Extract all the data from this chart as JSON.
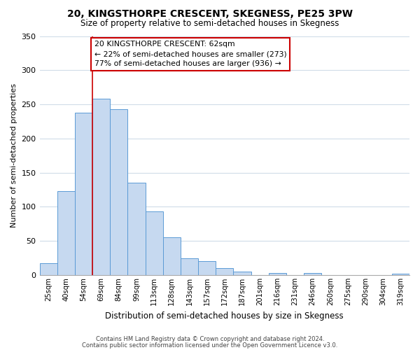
{
  "title": "20, KINGSTHORPE CRESCENT, SKEGNESS, PE25 3PW",
  "subtitle": "Size of property relative to semi-detached houses in Skegness",
  "xlabel": "Distribution of semi-detached houses by size in Skegness",
  "ylabel": "Number of semi-detached properties",
  "bin_labels": [
    "25sqm",
    "40sqm",
    "54sqm",
    "69sqm",
    "84sqm",
    "99sqm",
    "113sqm",
    "128sqm",
    "143sqm",
    "157sqm",
    "172sqm",
    "187sqm",
    "201sqm",
    "216sqm",
    "231sqm",
    "246sqm",
    "260sqm",
    "275sqm",
    "290sqm",
    "304sqm",
    "319sqm"
  ],
  "bar_heights": [
    17,
    123,
    238,
    258,
    243,
    135,
    93,
    55,
    25,
    20,
    10,
    5,
    0,
    3,
    0,
    3,
    0,
    0,
    0,
    0,
    2
  ],
  "bar_color": "#c6d9f0",
  "bar_edge_color": "#5b9bd5",
  "vline_color": "#cc0000",
  "annotation_line1": "20 KINGSTHORPE CRESCENT: 62sqm",
  "annotation_line2": "← 22% of semi-detached houses are smaller (273)",
  "annotation_line3": "77% of semi-detached houses are larger (936) →",
  "annotation_box_color": "#ffffff",
  "annotation_box_edge_color": "#cc0000",
  "ylim": [
    0,
    350
  ],
  "yticks": [
    0,
    50,
    100,
    150,
    200,
    250,
    300,
    350
  ],
  "footer_line1": "Contains HM Land Registry data © Crown copyright and database right 2024.",
  "footer_line2": "Contains public sector information licensed under the Open Government Licence v3.0.",
  "background_color": "#ffffff",
  "grid_color": "#d0dce8"
}
